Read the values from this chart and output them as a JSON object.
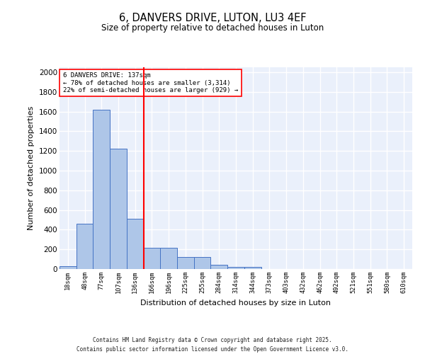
{
  "title1": "6, DANVERS DRIVE, LUTON, LU3 4EF",
  "title2": "Size of property relative to detached houses in Luton",
  "xlabel": "Distribution of detached houses by size in Luton",
  "ylabel": "Number of detached properties",
  "bin_labels": [
    "18sqm",
    "48sqm",
    "77sqm",
    "107sqm",
    "136sqm",
    "166sqm",
    "196sqm",
    "225sqm",
    "255sqm",
    "284sqm",
    "314sqm",
    "344sqm",
    "373sqm",
    "403sqm",
    "432sqm",
    "462sqm",
    "492sqm",
    "521sqm",
    "551sqm",
    "580sqm",
    "610sqm"
  ],
  "bar_values": [
    30,
    460,
    1620,
    1220,
    510,
    215,
    215,
    125,
    125,
    40,
    25,
    20,
    0,
    0,
    0,
    0,
    0,
    0,
    0,
    0,
    0
  ],
  "bar_color": "#aec6e8",
  "bar_edgecolor": "#4472c4",
  "vline_x": 4.5,
  "vline_color": "red",
  "annotation_title": "6 DANVERS DRIVE: 137sqm",
  "annotation_line1": "← 78% of detached houses are smaller (3,314)",
  "annotation_line2": "22% of semi-detached houses are larger (929) →",
  "annotation_box_color": "white",
  "annotation_box_edgecolor": "red",
  "ylim": [
    0,
    2050
  ],
  "yticks": [
    0,
    200,
    400,
    600,
    800,
    1000,
    1200,
    1400,
    1600,
    1800,
    2000
  ],
  "bg_color": "#eaf0fb",
  "grid_color": "white",
  "footer1": "Contains HM Land Registry data © Crown copyright and database right 2025.",
  "footer2": "Contains public sector information licensed under the Open Government Licence v3.0."
}
